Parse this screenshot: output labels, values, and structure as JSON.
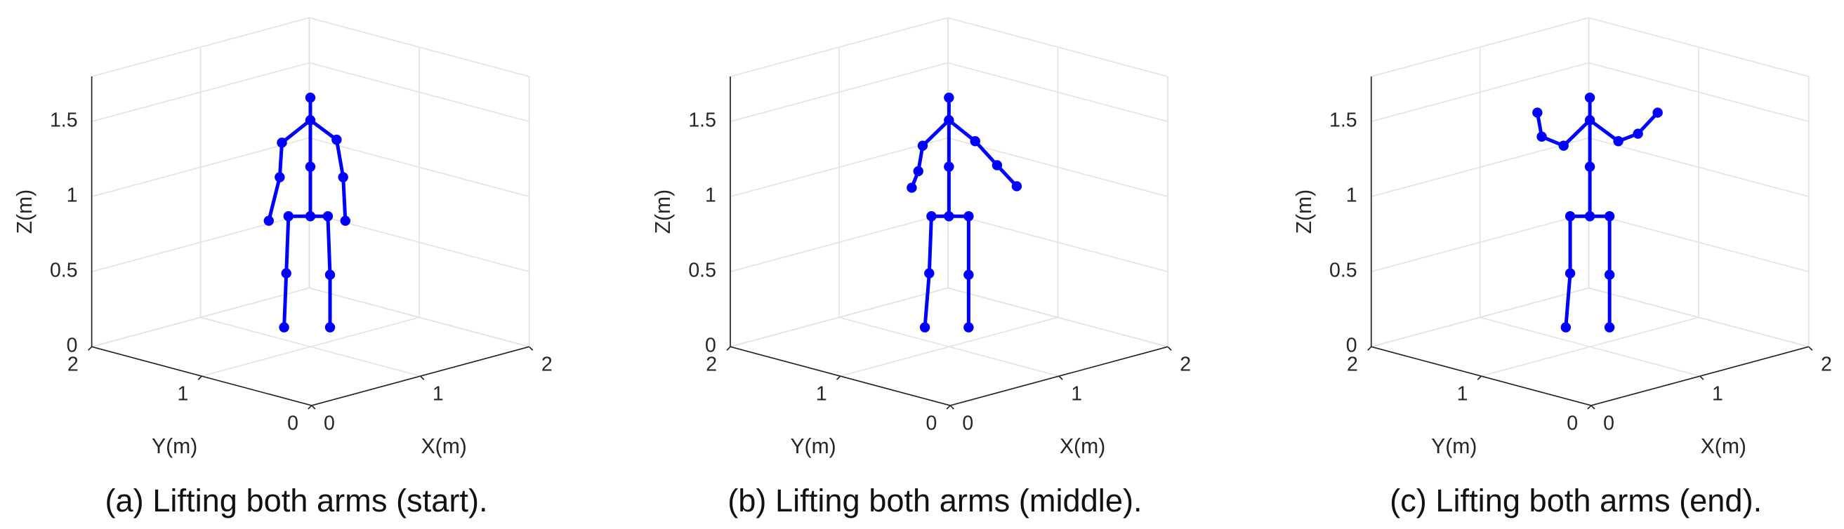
{
  "chart_data": [
    {
      "type": "skeleton3d",
      "caption": "(a) Lifting both arms (start).",
      "xlabel": "X(m)",
      "ylabel": "Y(m)",
      "zlabel": "Z(m)",
      "xlim": [
        0,
        2
      ],
      "ylim": [
        0,
        2
      ],
      "zlim": [
        0,
        1.8
      ],
      "xticks": [
        0,
        1,
        2
      ],
      "yticks": [
        0,
        1,
        2
      ],
      "zticks": [
        0,
        0.5,
        1,
        1.5
      ],
      "grid": true,
      "color": "#0000ff",
      "x": [
        1.1,
        1.1,
        1.1,
        1.1,
        0.97,
        0.96,
        0.91,
        1.22,
        1.25,
        1.26,
        1.0,
        0.99,
        0.98,
        1.18,
        1.19,
        1.19
      ],
      "y": [
        1.1,
        1.1,
        1.1,
        1.1,
        1.23,
        1.24,
        1.29,
        0.98,
        0.95,
        0.94,
        1.2,
        1.21,
        1.22,
        1.02,
        1.01,
        1.01
      ],
      "z": [
        1.62,
        1.47,
        1.16,
        0.83,
        1.32,
        1.09,
        0.8,
        1.34,
        1.09,
        0.8,
        0.83,
        0.45,
        0.09,
        0.83,
        0.44,
        0.09
      ]
    },
    {
      "type": "skeleton3d",
      "caption": "(b) Lifting both arms (middle).",
      "xlabel": "X(m)",
      "ylabel": "Y(m)",
      "zlabel": "Z(m)",
      "xlim": [
        0,
        2
      ],
      "ylim": [
        0,
        2
      ],
      "zlim": [
        0,
        1.8
      ],
      "xticks": [
        0,
        1,
        2
      ],
      "yticks": [
        0,
        1,
        2
      ],
      "zticks": [
        0,
        0.5,
        1,
        1.5
      ],
      "grid": true,
      "color": "#0000ff",
      "x": [
        1.1,
        1.1,
        1.1,
        1.1,
        0.98,
        0.96,
        0.93,
        1.22,
        1.32,
        1.41,
        1.02,
        1.01,
        0.99,
        1.19,
        1.19,
        1.19
      ],
      "y": [
        1.1,
        1.1,
        1.1,
        1.1,
        1.22,
        1.24,
        1.27,
        0.98,
        0.88,
        0.79,
        1.18,
        1.19,
        1.21,
        1.01,
        1.01,
        1.01
      ],
      "z": [
        1.62,
        1.47,
        1.16,
        0.83,
        1.3,
        1.13,
        1.02,
        1.33,
        1.17,
        1.03,
        0.83,
        0.45,
        0.09,
        0.83,
        0.44,
        0.09
      ]
    },
    {
      "type": "skeleton3d",
      "caption": "(c) Lifting both arms (end).",
      "xlabel": "X(m)",
      "ylabel": "Y(m)",
      "zlabel": "Z(m)",
      "xlim": [
        0,
        2
      ],
      "ylim": [
        0,
        2
      ],
      "zlim": [
        0,
        1.8
      ],
      "xticks": [
        0,
        1,
        2
      ],
      "yticks": [
        0,
        1,
        2
      ],
      "zticks": [
        0,
        0.5,
        1,
        1.5
      ],
      "grid": true,
      "color": "#0000ff",
      "x": [
        1.1,
        1.1,
        1.1,
        1.1,
        0.98,
        0.88,
        0.86,
        1.23,
        1.32,
        1.41,
        1.01,
        1.01,
        0.99,
        1.19,
        1.19,
        1.19
      ],
      "y": [
        1.1,
        1.1,
        1.1,
        1.1,
        1.22,
        1.32,
        1.34,
        0.97,
        0.88,
        0.79,
        1.19,
        1.19,
        1.21,
        1.01,
        1.01,
        1.01
      ],
      "z": [
        1.62,
        1.47,
        1.16,
        0.83,
        1.3,
        1.36,
        1.52,
        1.33,
        1.38,
        1.52,
        0.83,
        0.45,
        0.09,
        0.83,
        0.44,
        0.09
      ]
    }
  ]
}
